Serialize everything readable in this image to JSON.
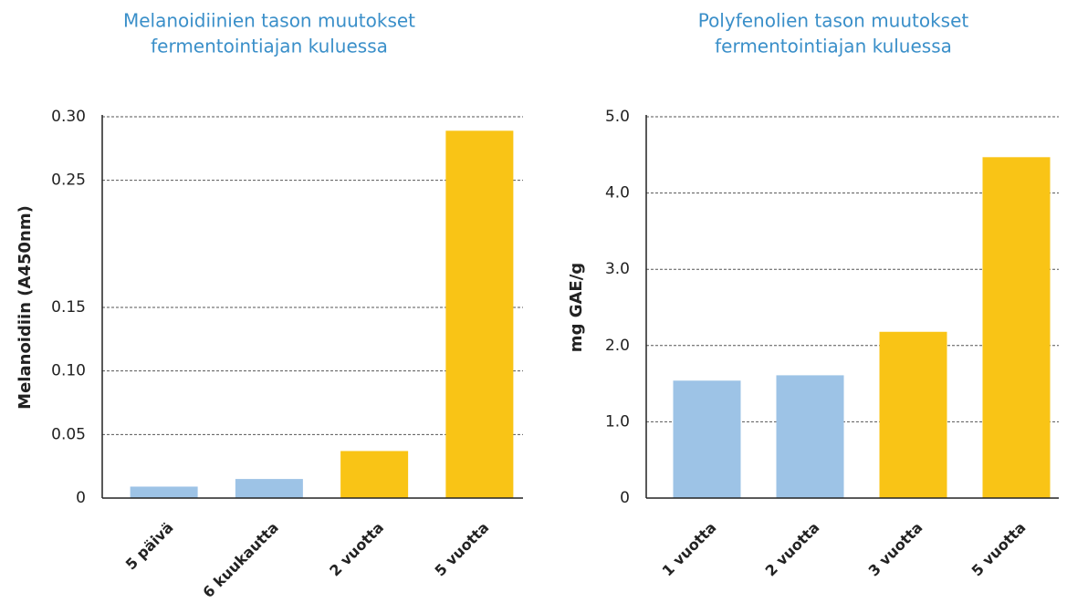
{
  "chart_data": [
    {
      "type": "bar",
      "title": [
        "Melanoidiinien tason muutokset",
        "fermentointiajan kuluessa"
      ],
      "y_label": "Melanoidiin (A450nm)",
      "categories": [
        "5 päivä",
        "6 kuukautta",
        "2 vuotta",
        "5 vuotta"
      ],
      "values": [
        0.009,
        0.015,
        0.037,
        0.289
      ],
      "colors": [
        "#9dc3e6",
        "#9dc3e6",
        "#f9c416",
        "#f9c416"
      ],
      "ylim": [
        0,
        0.3
      ],
      "yticks": [
        0,
        0.05,
        {
          "value": 0.1,
          "label": "0.10"
        },
        0.15,
        0.25,
        {
          "value": 0.3,
          "label": "0.30"
        }
      ],
      "grid": true
    },
    {
      "type": "bar",
      "title": [
        "Polyfenolien tason muutokset",
        "fermentointiajan kuluessa"
      ],
      "y_label": "mg GAE/g",
      "categories": [
        "1 vuotta",
        "2 vuotta",
        "3 vuotta",
        "5 vuotta"
      ],
      "values": [
        1.54,
        1.61,
        2.18,
        4.47
      ],
      "colors": [
        "#9dc3e6",
        "#9dc3e6",
        "#f9c416",
        "#f9c416"
      ],
      "ylim": [
        0,
        5
      ],
      "yticks": [
        0,
        {
          "value": 1,
          "label": "1.0"
        },
        {
          "value": 2,
          "label": "2.0"
        },
        {
          "value": 3,
          "label": "3.0"
        },
        {
          "value": 4,
          "label": "4.0"
        },
        {
          "value": 5,
          "label": "5.0"
        }
      ],
      "grid": true
    }
  ]
}
